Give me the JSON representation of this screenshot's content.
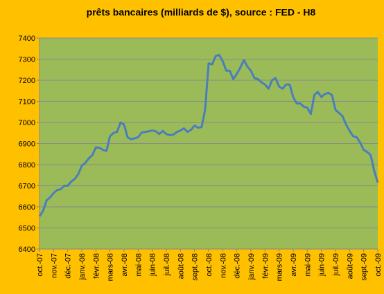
{
  "chart_data": {
    "type": "line",
    "title": "prêts bancaires (milliards de $), source : FED - H8",
    "categories": [
      "oct.-07",
      null,
      null,
      null,
      "nov.-07",
      null,
      null,
      null,
      "déc.-07",
      null,
      null,
      null,
      "janv.-08",
      null,
      null,
      null,
      "févr.-08",
      null,
      null,
      null,
      "mars-08",
      null,
      null,
      null,
      "avr.-08",
      null,
      null,
      null,
      "mai-08",
      null,
      null,
      null,
      "juin-08",
      null,
      null,
      null,
      "juil.-08",
      null,
      null,
      null,
      "août-08",
      null,
      null,
      null,
      "sept.-08",
      null,
      null,
      null,
      "oct.-08",
      null,
      null,
      null,
      "nov.-08",
      null,
      null,
      null,
      "déc.-08",
      null,
      null,
      null,
      "janv.-09",
      null,
      null,
      null,
      "févr.-09",
      null,
      null,
      null,
      "mars-09",
      null,
      null,
      null,
      "avr.-09",
      null,
      null,
      null,
      "mai-09",
      null,
      null,
      null,
      "juin-09",
      null,
      null,
      null,
      "juil.-09",
      null,
      null,
      null,
      "août-09",
      null,
      null,
      null,
      "sept.-09",
      null,
      null,
      null,
      "oct.-09"
    ],
    "values": [
      6555,
      6580,
      6630,
      6645,
      6665,
      6680,
      6683,
      6700,
      6700,
      6720,
      6732,
      6755,
      6795,
      6808,
      6830,
      6845,
      6882,
      6880,
      6870,
      6865,
      6935,
      6950,
      6955,
      7000,
      6990,
      6930,
      6920,
      6925,
      6930,
      6952,
      6955,
      6958,
      6962,
      6958,
      6945,
      6960,
      6945,
      6940,
      6942,
      6955,
      6962,
      6972,
      6955,
      6965,
      6985,
      6975,
      6978,
      7060,
      7280,
      7275,
      7315,
      7320,
      7290,
      7245,
      7245,
      7205,
      7230,
      7260,
      7295,
      7265,
      7245,
      7210,
      7205,
      7190,
      7180,
      7160,
      7200,
      7210,
      7170,
      7160,
      7180,
      7180,
      7120,
      7090,
      7090,
      7075,
      7070,
      7040,
      7130,
      7145,
      7120,
      7135,
      7140,
      7130,
      7060,
      7045,
      7030,
      6990,
      6960,
      6935,
      6930,
      6905,
      6870,
      6860,
      6845,
      6770,
      6715
    ],
    "color": "#4a7ebb",
    "ylim": [
      6400,
      7400
    ],
    "yticks": [
      6400,
      6500,
      6600,
      6700,
      6800,
      6900,
      7000,
      7100,
      7200,
      7300,
      7400
    ],
    "grid": true
  }
}
